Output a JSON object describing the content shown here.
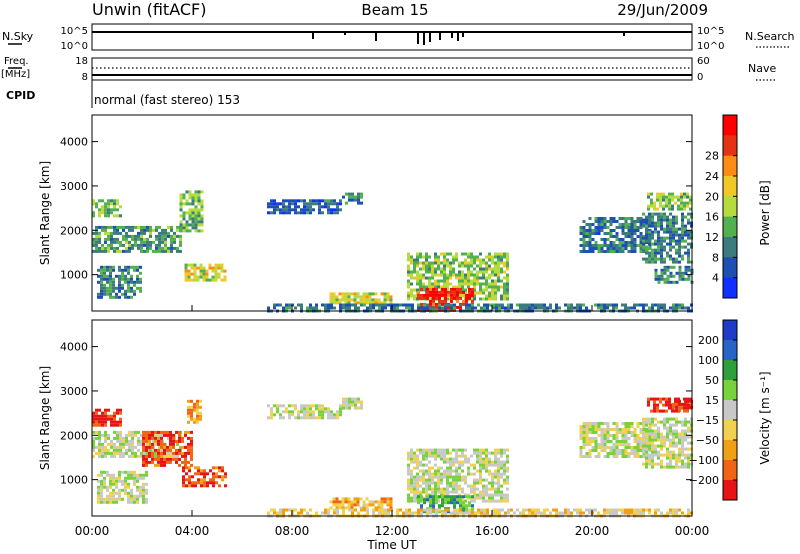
{
  "header": {
    "station": "Unwin (fitACF)",
    "beam": "Beam 15",
    "date": "29/Jun/2009"
  },
  "noise_panel": {
    "left_label": "N.Sky",
    "right_label": "N.Search",
    "left_ticks": [
      "10^5",
      "10^0"
    ],
    "right_ticks": [
      "10^5",
      "10^0"
    ]
  },
  "freq_panel": {
    "left_label_1": "Freq.",
    "left_label_2": "[MHz]",
    "right_label": "Nave",
    "left_ticks": [
      "18",
      "8"
    ],
    "right_ticks": [
      "60",
      "0"
    ]
  },
  "cpid": {
    "label": "CPID",
    "mode_text": "normal (fast stereo) 153"
  },
  "chart_data": [
    {
      "type": "heatmap",
      "title": "",
      "ylabel": "Slant Range [km]",
      "xlabel": "Time UT",
      "x_ticks": [
        "00:00",
        "04:00",
        "08:00",
        "12:00",
        "16:00",
        "20:00",
        "00:00"
      ],
      "xlim_hours": [
        0,
        24
      ],
      "ylim_km": [
        180,
        4600
      ],
      "y_ticks": [
        1000,
        2000,
        3000,
        4000
      ],
      "colorbar": {
        "label": "Power [dB]",
        "ticks": [
          "4",
          "8",
          "12",
          "16",
          "20",
          "24",
          "28"
        ],
        "colors": [
          "#1030ff",
          "#1e50b4",
          "#3c7c7c",
          "#52b050",
          "#b4dc3c",
          "#f0c828",
          "#ff8c14",
          "#e63214",
          "#ff0000"
        ]
      },
      "regions": [
        {
          "t": [
            0.0,
            3.6
          ],
          "r": [
            1500,
            2100
          ],
          "level": 0.35
        },
        {
          "t": [
            0.0,
            1.2
          ],
          "r": [
            2300,
            2700
          ],
          "level": 0.45
        },
        {
          "t": [
            0.2,
            2.0
          ],
          "r": [
            500,
            1200
          ],
          "level": 0.3
        },
        {
          "t": [
            3.5,
            4.4
          ],
          "r": [
            2000,
            2900
          ],
          "level": 0.4
        },
        {
          "t": [
            3.7,
            5.3
          ],
          "r": [
            850,
            1250
          ],
          "level": 0.55
        },
        {
          "t": [
            7.0,
            10.0
          ],
          "r": [
            2400,
            2700
          ],
          "level": 0.2
        },
        {
          "t": [
            10.0,
            10.8
          ],
          "r": [
            2600,
            2850
          ],
          "level": 0.3
        },
        {
          "t": [
            12.6,
            16.6
          ],
          "r": [
            450,
            1500
          ],
          "level": 0.45
        },
        {
          "t": [
            13.0,
            15.2
          ],
          "r": [
            200,
            700
          ],
          "level": 0.9
        },
        {
          "t": [
            9.5,
            12.0
          ],
          "r": [
            380,
            600
          ],
          "level": 0.55
        },
        {
          "t": [
            7.0,
            24.0
          ],
          "r": [
            200,
            350
          ],
          "level": 0.25
        },
        {
          "t": [
            19.5,
            22.3
          ],
          "r": [
            1500,
            2300
          ],
          "level": 0.25
        },
        {
          "t": [
            22.0,
            24.0
          ],
          "r": [
            1300,
            2400
          ],
          "level": 0.3
        },
        {
          "t": [
            22.2,
            24.0
          ],
          "r": [
            2500,
            2850
          ],
          "level": 0.45
        },
        {
          "t": [
            22.5,
            24.0
          ],
          "r": [
            800,
            1200
          ],
          "level": 0.3
        }
      ]
    },
    {
      "type": "heatmap",
      "title": "",
      "ylabel": "Slant Range [km]",
      "xlabel": "Time UT",
      "x_ticks": [
        "00:00",
        "04:00",
        "08:00",
        "12:00",
        "16:00",
        "20:00",
        "00:00"
      ],
      "xlim_hours": [
        0,
        24
      ],
      "ylim_km": [
        180,
        4600
      ],
      "y_ticks": [
        1000,
        2000,
        3000,
        4000
      ],
      "colorbar": {
        "label": "Velocity [m s⁻¹]",
        "ticks": [
          "200",
          "100",
          "50",
          "15",
          "−15",
          "−50",
          "−100",
          "−200"
        ],
        "colors": [
          "#1e3cc8",
          "#2864c8",
          "#2da03c",
          "#78d23c",
          "#c8c8c8",
          "#f0d250",
          "#f0a014",
          "#f06414",
          "#e61414"
        ]
      },
      "regions": [
        {
          "t": [
            0.0,
            1.2
          ],
          "r": [
            2200,
            2600
          ],
          "level": 0.95
        },
        {
          "t": [
            0.0,
            3.6
          ],
          "r": [
            1500,
            2100
          ],
          "level": 0.5
        },
        {
          "t": [
            0.2,
            2.2
          ],
          "r": [
            500,
            1200
          ],
          "level": 0.5
        },
        {
          "t": [
            2.0,
            4.0
          ],
          "r": [
            1300,
            2100
          ],
          "level": 0.9
        },
        {
          "t": [
            3.6,
            5.3
          ],
          "r": [
            850,
            1300
          ],
          "level": 0.88
        },
        {
          "t": [
            3.8,
            4.3
          ],
          "r": [
            2300,
            2800
          ],
          "level": 0.72
        },
        {
          "t": [
            7.0,
            10.0
          ],
          "r": [
            2400,
            2700
          ],
          "level": 0.5
        },
        {
          "t": [
            10.0,
            10.8
          ],
          "r": [
            2600,
            2850
          ],
          "level": 0.5
        },
        {
          "t": [
            12.6,
            16.6
          ],
          "r": [
            500,
            1700
          ],
          "level": 0.5
        },
        {
          "t": [
            13.0,
            15.2
          ],
          "r": [
            250,
            650
          ],
          "level": 0.3
        },
        {
          "t": [
            9.5,
            12.0
          ],
          "r": [
            380,
            600
          ],
          "level": 0.68
        },
        {
          "t": [
            7.0,
            24.0
          ],
          "r": [
            200,
            350
          ],
          "level": 0.6
        },
        {
          "t": [
            19.5,
            22.3
          ],
          "r": [
            1500,
            2300
          ],
          "level": 0.5
        },
        {
          "t": [
            22.0,
            24.0
          ],
          "r": [
            1300,
            2400
          ],
          "level": 0.5
        },
        {
          "t": [
            22.2,
            24.0
          ],
          "r": [
            2550,
            2850
          ],
          "level": 0.92
        },
        {
          "t": [
            23.2,
            24.0
          ],
          "r": [
            2550,
            2800
          ],
          "level": 0.95
        }
      ]
    }
  ]
}
